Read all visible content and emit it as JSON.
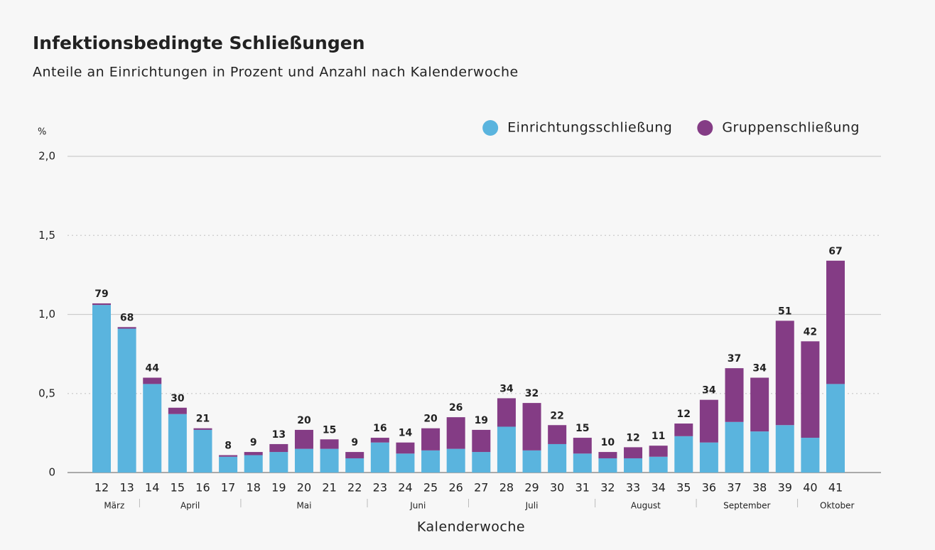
{
  "chart_data": {
    "type": "stacked-bar",
    "title": "Infektionsbedingte Schließungen",
    "subtitle": "Anteile an Einrichtungen in Prozent und Anzahl nach Kalenderwoche",
    "y_unit": "%",
    "x_label": "Kalenderwoche",
    "categories": [
      "12",
      "13",
      "14",
      "15",
      "16",
      "17",
      "18",
      "19",
      "20",
      "21",
      "22",
      "23",
      "24",
      "25",
      "26",
      "27",
      "28",
      "29",
      "30",
      "31",
      "32",
      "33",
      "34",
      "35",
      "36",
      "37",
      "38",
      "39",
      "40",
      "41"
    ],
    "series": [
      {
        "name": "Einrichtungsschließung",
        "color": "#5ab4de",
        "values": [
          1.06,
          0.91,
          0.56,
          0.37,
          0.27,
          0.1,
          0.11,
          0.13,
          0.15,
          0.15,
          0.09,
          0.19,
          0.12,
          0.14,
          0.15,
          0.13,
          0.29,
          0.14,
          0.18,
          0.12,
          0.09,
          0.09,
          0.1,
          0.23,
          0.19,
          0.32,
          0.26,
          0.3,
          0.22,
          0.56
        ]
      },
      {
        "name": "Gruppenschließung",
        "color": "#843c85",
        "values": [
          0.01,
          0.01,
          0.04,
          0.04,
          0.01,
          0.01,
          0.02,
          0.05,
          0.12,
          0.06,
          0.04,
          0.03,
          0.07,
          0.14,
          0.2,
          0.14,
          0.18,
          0.3,
          0.12,
          0.1,
          0.04,
          0.07,
          0.07,
          0.08,
          0.27,
          0.34,
          0.34,
          0.66,
          0.61,
          0.78
        ]
      }
    ],
    "counts": [
      79,
      68,
      44,
      30,
      21,
      8,
      9,
      13,
      20,
      15,
      9,
      16,
      14,
      20,
      26,
      19,
      34,
      32,
      22,
      15,
      10,
      12,
      11,
      12,
      34,
      37,
      34,
      51,
      42,
      67
    ],
    "months": [
      {
        "label": "März",
        "first_week": "12",
        "last_week": "13"
      },
      {
        "label": "April",
        "first_week": "14",
        "last_week": "17"
      },
      {
        "label": "Mai",
        "first_week": "18",
        "last_week": "22"
      },
      {
        "label": "Juni",
        "first_week": "23",
        "last_week": "26"
      },
      {
        "label": "Juli",
        "first_week": "27",
        "last_week": "31"
      },
      {
        "label": "August",
        "first_week": "32",
        "last_week": "35"
      },
      {
        "label": "September",
        "first_week": "36",
        "last_week": "39"
      },
      {
        "label": "Oktober",
        "first_week": "40",
        "last_week": "41"
      }
    ],
    "ylim": [
      0,
      2
    ],
    "yticks": [
      0,
      {
        "value": 0.5,
        "label": "0,5"
      },
      {
        "value": 1,
        "label": "1,0"
      },
      {
        "value": 1.5,
        "label": "1,5"
      },
      {
        "value": 2,
        "label": "2,0"
      }
    ],
    "grid": true,
    "legend": "top-right"
  }
}
